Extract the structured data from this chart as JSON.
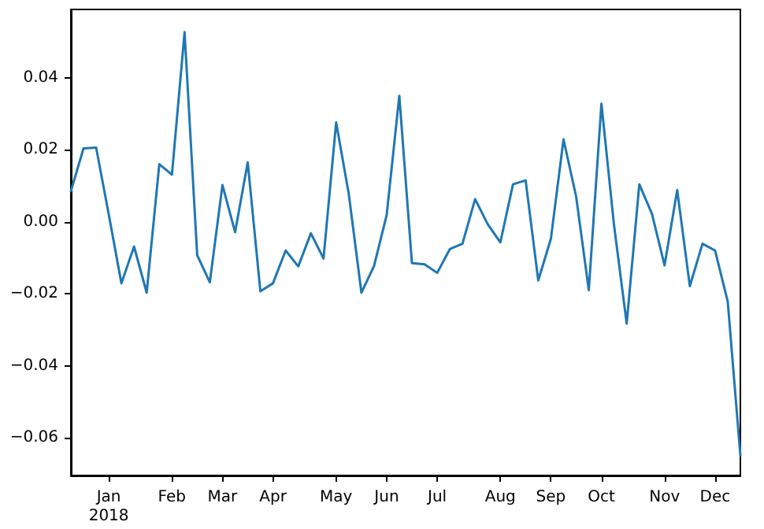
{
  "chart_data": {
    "type": "line",
    "x": [
      "2017-12-11",
      "2017-12-18",
      "2017-12-25",
      "2018-01-01",
      "2018-01-08",
      "2018-01-15",
      "2018-01-22",
      "2018-01-29",
      "2018-02-05",
      "2018-02-12",
      "2018-02-19",
      "2018-02-26",
      "2018-03-05",
      "2018-03-12",
      "2018-03-19",
      "2018-03-26",
      "2018-04-02",
      "2018-04-09",
      "2018-04-16",
      "2018-04-23",
      "2018-04-30",
      "2018-05-07",
      "2018-05-14",
      "2018-05-21",
      "2018-05-28",
      "2018-06-04",
      "2018-06-11",
      "2018-06-18",
      "2018-06-25",
      "2018-07-02",
      "2018-07-09",
      "2018-07-16",
      "2018-07-23",
      "2018-07-30",
      "2018-08-06",
      "2018-08-13",
      "2018-08-20",
      "2018-08-27",
      "2018-09-03",
      "2018-09-10",
      "2018-09-17",
      "2018-09-24",
      "2018-10-01",
      "2018-10-08",
      "2018-10-15",
      "2018-10-22",
      "2018-10-29",
      "2018-11-05",
      "2018-11-12",
      "2018-11-19",
      "2018-11-26",
      "2018-12-03",
      "2018-12-10",
      "2018-12-17"
    ],
    "series": [
      {
        "color": "#1f77b4",
        "values": [
          0.0085,
          0.0204,
          0.0206,
          0.002,
          -0.0171,
          -0.0069,
          -0.0197,
          0.016,
          0.0131,
          0.0527,
          -0.0093,
          -0.0168,
          0.0102,
          -0.0029,
          0.0165,
          -0.0193,
          -0.0171,
          -0.008,
          -0.0124,
          -0.0032,
          -0.0102,
          0.0276,
          0.0077,
          -0.0197,
          -0.0123,
          0.0019,
          0.035,
          -0.0115,
          -0.0118,
          -0.0142,
          -0.0076,
          -0.0061,
          0.0063,
          -0.0007,
          -0.0057,
          0.0104,
          0.0115,
          -0.0163,
          -0.0047,
          0.0229,
          0.007,
          -0.019,
          0.0328,
          -0.001,
          -0.0283,
          0.0104,
          0.0022,
          -0.0121,
          0.0088,
          -0.0179,
          -0.0061,
          -0.008,
          -0.0222,
          -0.0649
        ]
      }
    ],
    "xlim": [
      "2017-12-11",
      "2018-12-17"
    ],
    "xticks": [
      {
        "value": "2018-01-01",
        "label": "Jan\n2018"
      },
      {
        "value": "2018-02-05",
        "label": "Feb"
      },
      {
        "value": "2018-03-05",
        "label": "Mar"
      },
      {
        "value": "2018-04-02",
        "label": "Apr"
      },
      {
        "value": "2018-05-07",
        "label": "May"
      },
      {
        "value": "2018-06-04",
        "label": "Jun"
      },
      {
        "value": "2018-07-02",
        "label": "Jul"
      },
      {
        "value": "2018-08-06",
        "label": "Aug"
      },
      {
        "value": "2018-09-03",
        "label": "Sep"
      },
      {
        "value": "2018-10-01",
        "label": "Oct"
      },
      {
        "value": "2018-11-05",
        "label": "Nov"
      },
      {
        "value": "2018-12-03",
        "label": "Dec"
      }
    ],
    "ylim": [
      -0.0705,
      0.059
    ],
    "yticks": [
      {
        "value": -0.06,
        "label": "−0.06"
      },
      {
        "value": -0.04,
        "label": "−0.04"
      },
      {
        "value": -0.02,
        "label": "−0.02"
      },
      {
        "value": 0,
        "label": "0.00"
      },
      {
        "value": 0.02,
        "label": "0.02"
      },
      {
        "value": 0.04,
        "label": "0.04"
      }
    ],
    "grid": false,
    "marker": "none",
    "line_style": "solid"
  }
}
